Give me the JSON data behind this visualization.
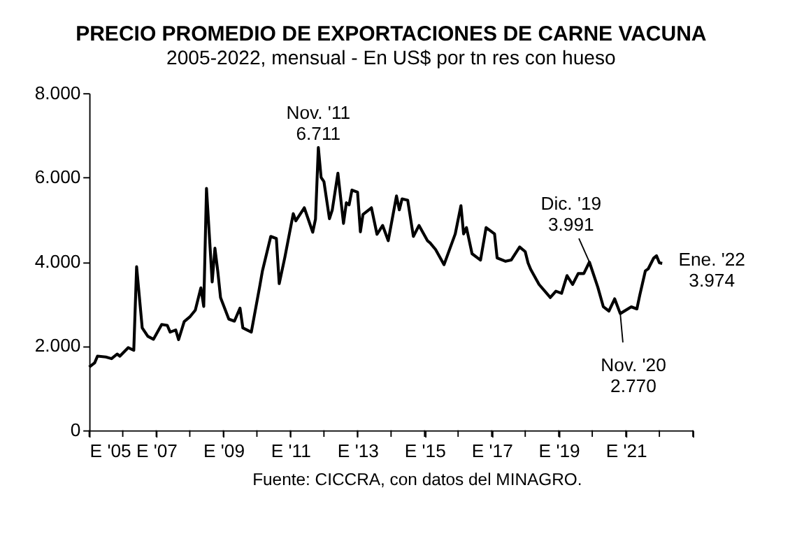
{
  "chart_data": {
    "type": "line",
    "title": "PRECIO PROMEDIO DE EXPORTACIONES DE CARNE VACUNA",
    "subtitle": "2005-2022, mensual - En US$ por tn res con hueso",
    "x": [
      "2005-01",
      "2005-03",
      "2005-04",
      "2005-07",
      "2005-09",
      "2005-11",
      "2005-12",
      "2006-03",
      "2006-05",
      "2006-06",
      "2006-08",
      "2006-10",
      "2006-12",
      "2007-03",
      "2007-05",
      "2007-06",
      "2007-08",
      "2007-09",
      "2007-11",
      "2008-01",
      "2008-03",
      "2008-05",
      "2008-06",
      "2008-07",
      "2008-09",
      "2008-10",
      "2008-11",
      "2008-12",
      "2009-03",
      "2009-05",
      "2009-07",
      "2009-08",
      "2009-11",
      "2010-02",
      "2010-03",
      "2010-06",
      "2010-08",
      "2010-09",
      "2010-11",
      "2011-02",
      "2011-03",
      "2011-06",
      "2011-09",
      "2011-10",
      "2011-11",
      "2011-12",
      "2012-01",
      "2012-03",
      "2012-04",
      "2012-06",
      "2012-08",
      "2012-09",
      "2012-10",
      "2012-11",
      "2013-01",
      "2013-02",
      "2013-03",
      "2013-06",
      "2013-08",
      "2013-10",
      "2013-12",
      "2014-03",
      "2014-04",
      "2014-05",
      "2014-07",
      "2014-09",
      "2014-11",
      "2015-02",
      "2015-03",
      "2015-05",
      "2015-08",
      "2015-12",
      "2016-02",
      "2016-03",
      "2016-04",
      "2016-06",
      "2016-09",
      "2016-11",
      "2017-02",
      "2017-03",
      "2017-06",
      "2017-08",
      "2017-11",
      "2018-01",
      "2018-02",
      "2018-03",
      "2018-06",
      "2018-10",
      "2018-12",
      "2019-02",
      "2019-04",
      "2019-06",
      "2019-08",
      "2019-10",
      "2019-12",
      "2020-03",
      "2020-05",
      "2020-07",
      "2020-09",
      "2020-11",
      "2021-03",
      "2021-05",
      "2021-06",
      "2021-08",
      "2021-09",
      "2021-11",
      "2021-12",
      "2022-01",
      "2022-02"
    ],
    "series": [
      {
        "color": "#000000",
        "values": [
          1500,
          1600,
          1760,
          1740,
          1700,
          1810,
          1760,
          1960,
          1900,
          3880,
          2430,
          2230,
          2160,
          2510,
          2490,
          2330,
          2380,
          2150,
          2580,
          2690,
          2850,
          3380,
          2940,
          5740,
          3520,
          4320,
          3770,
          3150,
          2640,
          2590,
          2900,
          2430,
          2330,
          3420,
          3770,
          4600,
          4550,
          3480,
          4100,
          5140,
          4970,
          5280,
          4700,
          5010,
          6711,
          6000,
          5900,
          5020,
          5230,
          6100,
          4910,
          5400,
          5350,
          5700,
          5650,
          4710,
          5120,
          5280,
          4650,
          4860,
          4500,
          5560,
          5230,
          5490,
          5460,
          4600,
          4860,
          4500,
          4450,
          4290,
          3930,
          4660,
          5330,
          4660,
          4810,
          4190,
          4040,
          4810,
          4660,
          4090,
          4010,
          4040,
          4350,
          4240,
          3970,
          3820,
          3460,
          3150,
          3300,
          3250,
          3670,
          3460,
          3720,
          3720,
          3991,
          3400,
          2930,
          2830,
          3120,
          2770,
          2930,
          2880,
          3200,
          3780,
          3830,
          4090,
          4140,
          3974,
          3960
        ]
      }
    ],
    "xlim": [
      "2005-01",
      "2023-01"
    ],
    "xticks": [
      {
        "value": "2005-01",
        "label": "E '05"
      },
      {
        "value": "2006-01",
        "label": null
      },
      {
        "value": "2007-01",
        "label": "E '07"
      },
      {
        "value": "2008-01",
        "label": null
      },
      {
        "value": "2009-01",
        "label": "E '09"
      },
      {
        "value": "2010-01",
        "label": null
      },
      {
        "value": "2011-01",
        "label": "E '11"
      },
      {
        "value": "2012-01",
        "label": null
      },
      {
        "value": "2013-01",
        "label": "E '13"
      },
      {
        "value": "2014-01",
        "label": null
      },
      {
        "value": "2015-01",
        "label": "E '15"
      },
      {
        "value": "2016-01",
        "label": null
      },
      {
        "value": "2017-01",
        "label": "E '17"
      },
      {
        "value": "2018-01",
        "label": null
      },
      {
        "value": "2019-01",
        "label": "E '19"
      },
      {
        "value": "2020-01",
        "label": null
      },
      {
        "value": "2021-01",
        "label": "E '21"
      },
      {
        "value": "2022-01",
        "label": null
      },
      {
        "value": "2023-01",
        "label": null
      }
    ],
    "ylim": [
      0,
      8000
    ],
    "yticks": [
      {
        "value": 0,
        "label": "0"
      },
      {
        "value": 2000,
        "label": "2.000"
      },
      {
        "value": 4000,
        "label": "4.000"
      },
      {
        "value": 6000,
        "label": "6.000"
      },
      {
        "value": 8000,
        "label": "8.000"
      }
    ],
    "grid": false,
    "marker": "none",
    "line_style": "solid",
    "annotations": [
      {
        "text": "Nov. '11\n6.711",
        "x": "2011-11",
        "y": 6711
      },
      {
        "text": "Dic. '19\n3.991",
        "x": "2019-12",
        "y": 3991
      },
      {
        "text": "Nov. '20\n2.770",
        "x": "2020-11",
        "y": 2770
      },
      {
        "text": "Ene. '22\n3.974",
        "x": "2022-01",
        "y": 3974
      },
      "Fuente: CICCRA, con datos del MINAGRO."
    ]
  }
}
